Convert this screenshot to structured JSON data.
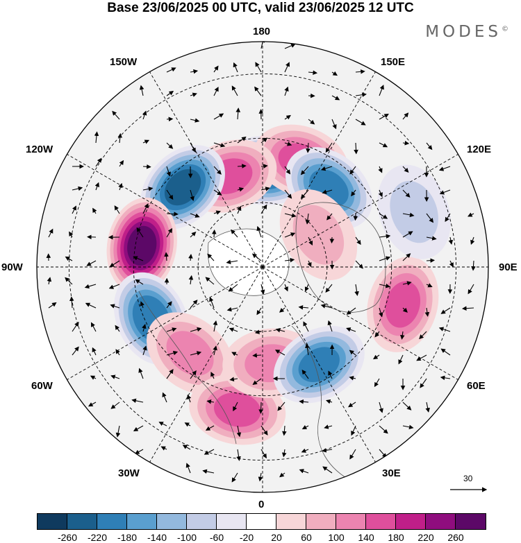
{
  "title": "Base 23/06/2025 00 UTC, valid 23/06/2025 12 UTC",
  "brand": "MODES",
  "brand_mark": "©",
  "longitude_labels": {
    "top": "180",
    "bottom": "0",
    "left": "90W",
    "right": "90E",
    "w150": "150W",
    "e150": "150E",
    "w120": "120W",
    "e120": "120E",
    "w60": "60W",
    "e60": "60E",
    "w30": "30W",
    "e30": "30E"
  },
  "reference_vector": "30",
  "colorbar": {
    "colors": [
      "#0f3a5e",
      "#1b5f8c",
      "#2f7fb6",
      "#5a9fcf",
      "#93b9de",
      "#c3cce6",
      "#e8e6f2",
      "#ffffff",
      "#f7d6d8",
      "#f0aebf",
      "#ec84b0",
      "#df4f9c",
      "#c01f89",
      "#8f0d7e",
      "#5c0867"
    ],
    "labels": [
      "-260",
      "-220",
      "-180",
      "-140",
      "-100",
      "-60",
      "-20",
      "20",
      "60",
      "100",
      "140",
      "180",
      "220",
      "260"
    ]
  },
  "anomaly_centers": [
    {
      "lon": 178,
      "lat": 60,
      "value": -220
    },
    {
      "lon": 160,
      "lat": 55,
      "value": 140
    },
    {
      "lon": 140,
      "lat": 58,
      "value": -180
    },
    {
      "lon": -160,
      "lat": 60,
      "value": 140
    },
    {
      "lon": -135,
      "lat": 55,
      "value": -220
    },
    {
      "lon": -100,
      "lat": 52,
      "value": 260
    },
    {
      "lon": -65,
      "lat": 52,
      "value": -200
    },
    {
      "lon": -40,
      "lat": 55,
      "value": 100
    },
    {
      "lon": -10,
      "lat": 45,
      "value": 140
    },
    {
      "lon": 5,
      "lat": 60,
      "value": 100
    },
    {
      "lon": 30,
      "lat": 55,
      "value": -180
    },
    {
      "lon": 75,
      "lat": 45,
      "value": 140
    },
    {
      "lon": 110,
      "lat": 40,
      "value": -60
    },
    {
      "lon": 120,
      "lat": 70,
      "value": 60
    }
  ]
}
